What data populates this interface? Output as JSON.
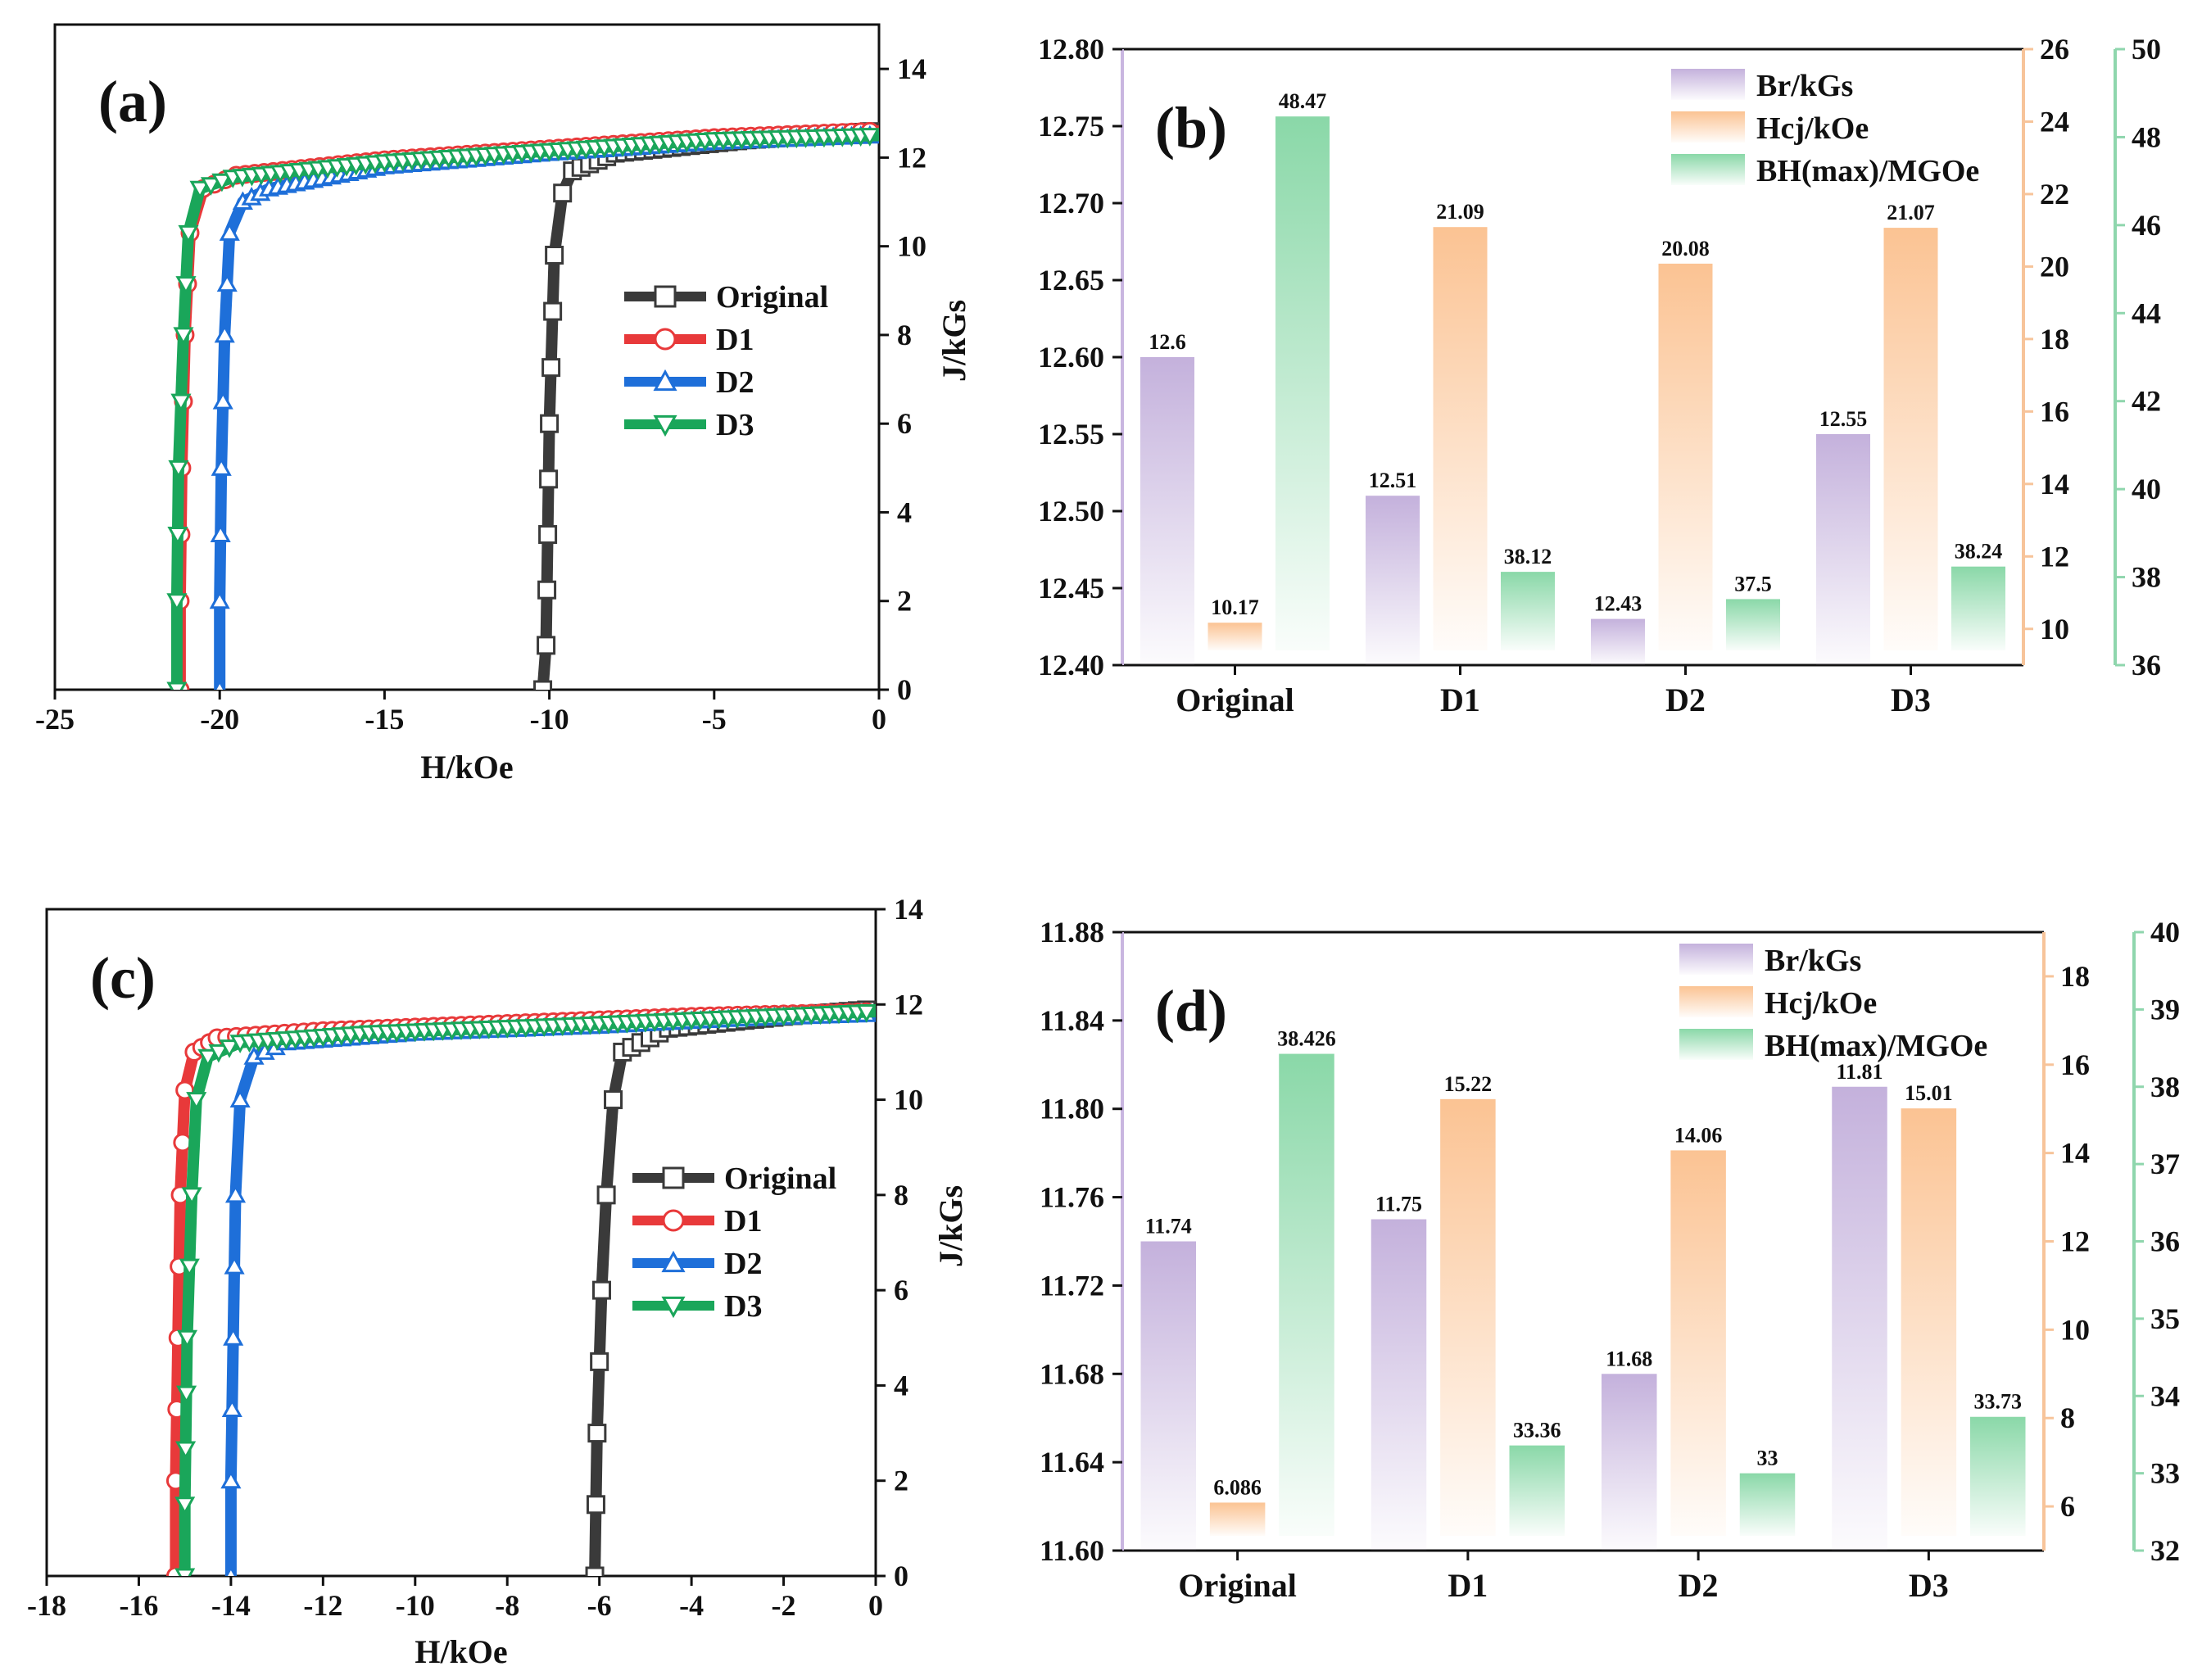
{
  "colors": {
    "original": "#3a3a3a",
    "d1": "#e8393a",
    "d2": "#1e6fd9",
    "d3": "#1aa65a",
    "br": "#c4b1dc",
    "hcj": "#fbc393",
    "bh": "#8ad8a8",
    "axis_hcj": "#f7c49a",
    "axis_bh": "#8fd6ad",
    "axis_br": "#c9b6e0"
  },
  "chart_data": [
    {
      "id": "a",
      "type": "line",
      "panel_label": "(a)",
      "xlabel": "H/kOe",
      "ylabel": "J/kGs",
      "xlim": [
        -25,
        0
      ],
      "ylim": [
        0,
        15
      ],
      "xticks": [
        "-25",
        "-20",
        "-15",
        "-10",
        "-5",
        "0"
      ],
      "yticks": [
        "0",
        "2",
        "4",
        "6",
        "8",
        "10",
        "12",
        "14"
      ],
      "legend": [
        "Original",
        "D1",
        "D2",
        "D3"
      ],
      "series": [
        {
          "name": "Original",
          "x": [
            -10.2,
            -10.1,
            -10.0,
            -9.85,
            -9.6,
            -9.3,
            -8.0,
            -4.0,
            0
          ],
          "y": [
            0,
            1.0,
            6.0,
            9.8,
            11.2,
            11.7,
            12.1,
            12.4,
            12.6
          ]
        },
        {
          "name": "D1",
          "x": [
            -21.2,
            -21.2,
            -21.15,
            -21.05,
            -20.9,
            -20.5,
            -19.5,
            -15,
            -10,
            -5,
            0
          ],
          "y": [
            0,
            2.0,
            5.0,
            8.0,
            10.3,
            11.3,
            11.6,
            11.95,
            12.2,
            12.45,
            12.6
          ]
        },
        {
          "name": "D2",
          "x": [
            -20.0,
            -20.0,
            -19.95,
            -19.85,
            -19.7,
            -19.3,
            -18.5,
            -15,
            -10,
            -5,
            0
          ],
          "y": [
            0,
            2.0,
            5.0,
            8.0,
            10.3,
            11.0,
            11.3,
            11.8,
            12.1,
            12.35,
            12.5
          ]
        },
        {
          "name": "D3",
          "x": [
            -21.3,
            -21.3,
            -21.25,
            -21.1,
            -20.95,
            -20.6,
            -19.6,
            -15,
            -10,
            -5,
            0
          ],
          "y": [
            0,
            2.0,
            5.0,
            8.0,
            10.3,
            11.3,
            11.55,
            11.9,
            12.15,
            12.4,
            12.5
          ]
        }
      ]
    },
    {
      "id": "b",
      "type": "bar",
      "panel_label": "(b)",
      "categories": [
        "Original",
        "D1",
        "D2",
        "D3"
      ],
      "legend": [
        "Br/kGs",
        "Hcj/kOe",
        "BH(max)/MGOe"
      ],
      "axes": {
        "br": {
          "range": [
            12.4,
            12.8
          ],
          "ticks": [
            "12.40",
            "12.45",
            "12.50",
            "12.55",
            "12.60",
            "12.65",
            "12.70",
            "12.75",
            "12.80"
          ]
        },
        "hcj": {
          "range": [
            9,
            26
          ],
          "ticks": [
            "10",
            "12",
            "14",
            "16",
            "18",
            "20",
            "22",
            "24",
            "26"
          ]
        },
        "bh": {
          "range": [
            36,
            50
          ],
          "ticks": [
            "36",
            "38",
            "40",
            "42",
            "44",
            "46",
            "48",
            "50"
          ]
        }
      },
      "series": [
        {
          "name": "Br/kGs",
          "values": [
            12.6,
            12.51,
            12.43,
            12.55
          ],
          "labels": [
            "12.6",
            "12.51",
            "12.43",
            "12.55"
          ]
        },
        {
          "name": "Hcj/kOe",
          "values": [
            10.17,
            21.09,
            20.08,
            21.07
          ],
          "labels": [
            "10.17",
            "21.09",
            "20.08",
            "21.07"
          ]
        },
        {
          "name": "BH(max)/MGOe",
          "values": [
            48.47,
            38.12,
            37.5,
            38.24
          ],
          "labels": [
            "48.47",
            "38.12",
            "37.5",
            "38.24"
          ]
        }
      ]
    },
    {
      "id": "c",
      "type": "line",
      "panel_label": "(c)",
      "xlabel": "H/kOe",
      "ylabel": "J/kGs",
      "xlim": [
        -18,
        0
      ],
      "ylim": [
        0,
        14
      ],
      "xticks": [
        "-18",
        "-16",
        "-14",
        "-12",
        "-10",
        "-8",
        "-6",
        "-4",
        "-2",
        "0"
      ],
      "yticks": [
        "0",
        "2",
        "4",
        "6",
        "8",
        "10",
        "12",
        "14"
      ],
      "legend": [
        "Original",
        "D1",
        "D2",
        "D3"
      ],
      "series": [
        {
          "name": "Original",
          "x": [
            -6.1,
            -6.05,
            -5.95,
            -5.85,
            -5.7,
            -5.5,
            -4.5,
            -2,
            0
          ],
          "y": [
            0,
            3.0,
            6.0,
            8.0,
            10.0,
            11.0,
            11.5,
            11.75,
            11.9
          ]
        },
        {
          "name": "D1",
          "x": [
            -15.2,
            -15.2,
            -15.15,
            -15.1,
            -15.0,
            -14.8,
            -14.3,
            -12,
            -8,
            -4,
            0
          ],
          "y": [
            0,
            2.0,
            5.0,
            8.0,
            10.2,
            11.0,
            11.3,
            11.45,
            11.6,
            11.75,
            11.85
          ]
        },
        {
          "name": "D2",
          "x": [
            -14.0,
            -14.0,
            -13.95,
            -13.9,
            -13.8,
            -13.5,
            -12.8,
            -10,
            -6,
            -3,
            0
          ],
          "y": [
            0,
            2.0,
            5.0,
            8.0,
            10.0,
            10.9,
            11.2,
            11.4,
            11.55,
            11.7,
            11.8
          ]
        },
        {
          "name": "D3",
          "x": [
            -15.0,
            -15.0,
            -14.95,
            -14.85,
            -14.75,
            -14.5,
            -13.8,
            -11,
            -7,
            -3,
            0
          ],
          "y": [
            0,
            1.5,
            5.0,
            8.0,
            10.0,
            10.9,
            11.2,
            11.4,
            11.55,
            11.72,
            11.85
          ]
        }
      ]
    },
    {
      "id": "d",
      "type": "bar",
      "panel_label": "(d)",
      "categories": [
        "Original",
        "D1",
        "D2",
        "D3"
      ],
      "legend": [
        "Br/kGs",
        "Hcj/kOe",
        "BH(max)/MGOe"
      ],
      "axes": {
        "br": {
          "range": [
            11.6,
            11.88
          ],
          "ticks": [
            "11.60",
            "11.64",
            "11.68",
            "11.72",
            "11.76",
            "11.80",
            "11.84",
            "11.88"
          ]
        },
        "hcj": {
          "range": [
            5,
            19
          ],
          "ticks": [
            "6",
            "8",
            "10",
            "12",
            "14",
            "16",
            "18"
          ]
        },
        "bh": {
          "range": [
            32,
            40
          ],
          "ticks": [
            "32",
            "33",
            "34",
            "35",
            "36",
            "37",
            "38",
            "39",
            "40"
          ]
        }
      },
      "series": [
        {
          "name": "Br/kGs",
          "values": [
            11.74,
            11.75,
            11.68,
            11.81
          ],
          "labels": [
            "11.74",
            "11.75",
            "11.68",
            "11.81"
          ]
        },
        {
          "name": "Hcj/kOe",
          "values": [
            6.086,
            15.22,
            14.06,
            15.01
          ],
          "labels": [
            "6.086",
            "15.22",
            "14.06",
            "15.01"
          ]
        },
        {
          "name": "BH(max)/MGOe",
          "values": [
            38.426,
            33.36,
            33,
            33.73
          ],
          "labels": [
            "38.426",
            "33.36",
            "33",
            "33.73"
          ]
        }
      ]
    }
  ]
}
